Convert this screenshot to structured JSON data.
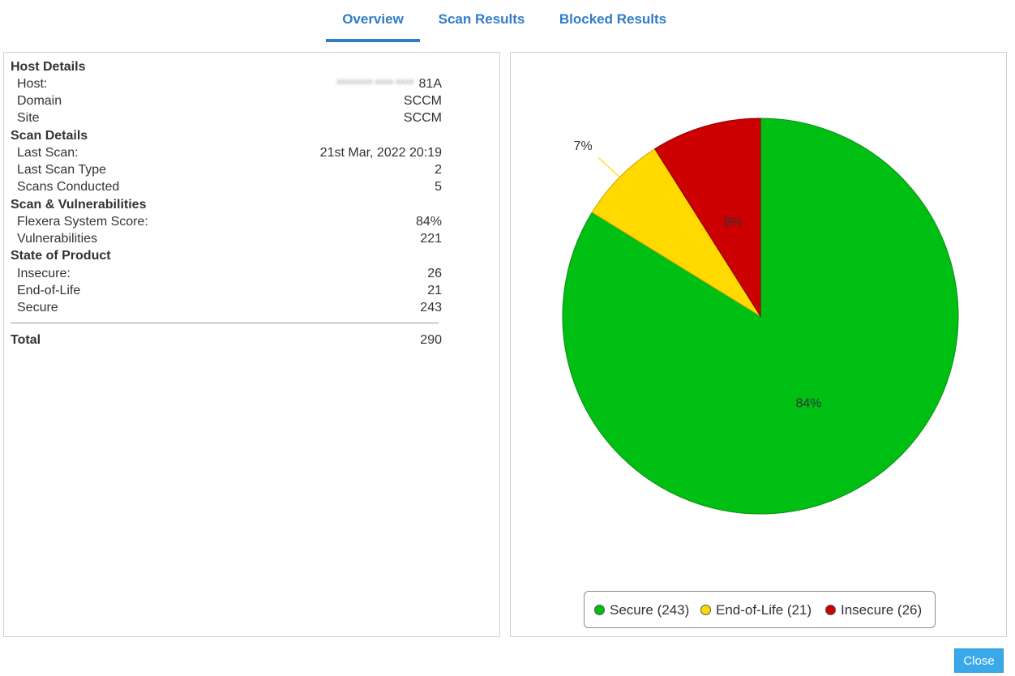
{
  "tabs": [
    {
      "label": "Overview",
      "active": true
    },
    {
      "label": "Scan Results",
      "active": false
    },
    {
      "label": "Blocked Results",
      "active": false
    }
  ],
  "details": {
    "host_details": {
      "title": "Host Details",
      "host_label": "Host:",
      "host_value_suffix": "81A",
      "domain_label": "Domain",
      "domain_value": "SCCM",
      "site_label": "Site",
      "site_value": "SCCM"
    },
    "scan_details": {
      "title": "Scan Details",
      "last_scan_label": "Last Scan:",
      "last_scan_value": "21st Mar, 2022 20:19",
      "last_scan_type_label": "Last Scan Type",
      "last_scan_type_value": "2",
      "scans_conducted_label": "Scans Conducted",
      "scans_conducted_value": "5"
    },
    "scan_vulns": {
      "title": "Scan & Vulnerabilities",
      "score_label": "Flexera System Score:",
      "score_value": "84%",
      "vulns_label": "Vulnerabilities",
      "vulns_value": "221"
    },
    "state": {
      "title": "State of Product",
      "insecure_label": "Insecure:",
      "insecure_value": "26",
      "eol_label": "End-of-Life",
      "eol_value": "21",
      "secure_label": "Secure",
      "secure_value": "243"
    },
    "total_label": "Total",
    "total_value": "290"
  },
  "legend": [
    "Secure (243)",
    "End-of-Life (21)",
    "Insecure (26)"
  ],
  "close_label": "Close",
  "chart_data": {
    "type": "pie",
    "categories": [
      "Secure",
      "End-of-Life",
      "Insecure"
    ],
    "values": [
      243,
      21,
      26
    ],
    "data_labels": [
      "84%",
      "7%",
      "9%"
    ],
    "colors": [
      "#00bf13",
      "#ffd900",
      "#cc0000"
    ],
    "legend_position": "bottom"
  }
}
